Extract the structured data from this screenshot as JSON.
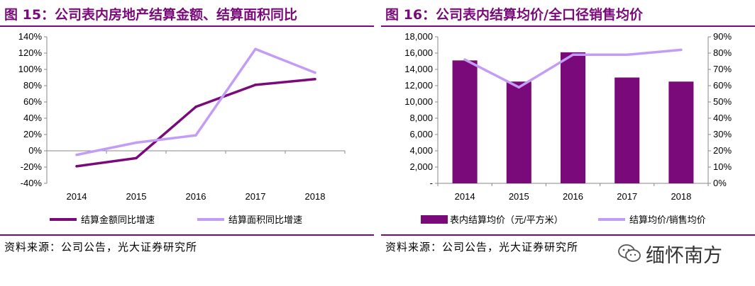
{
  "left": {
    "title": "图 15：公司表内房地产结算金额、结算面积同比",
    "source": "资料来源：公司公告，光大证券研究所"
  },
  "right": {
    "title": "图 16：公司表内结算均价/全口径销售均价",
    "source": "资料来源：公司公告，光大证券研究所"
  },
  "watermark": {
    "text": "缅怀南方",
    "icon": "wechat-icon"
  },
  "colors": {
    "dark": "#7a0a7a",
    "light": "#c39df5",
    "rule": "#7a0a7a"
  },
  "chart_data": [
    {
      "type": "line",
      "title": "图 15：公司表内房地产结算金额、结算面积同比",
      "categories": [
        "2014",
        "2015",
        "2016",
        "2017",
        "2018"
      ],
      "ylim": [
        -40,
        140
      ],
      "yticks": [
        "-40%",
        "-20%",
        "0%",
        "20%",
        "40%",
        "60%",
        "80%",
        "100%",
        "120%",
        "140%"
      ],
      "series": [
        {
          "name": "结算金额同比增速",
          "values": [
            -19,
            -9,
            54,
            81,
            88
          ],
          "color": "#7a0a7a"
        },
        {
          "name": "结算面积同比增速",
          "values": [
            -5,
            10,
            19,
            125,
            96
          ],
          "color": "#c39df5"
        }
      ],
      "grid": false,
      "legend": "bottom"
    },
    {
      "type": "bar",
      "title": "图 16：公司表内结算均价/全口径销售均价",
      "categories": [
        "2014",
        "2015",
        "2016",
        "2017",
        "2018"
      ],
      "ylim": [
        0,
        18000
      ],
      "yticks": [
        "-",
        "2,000",
        "4,000",
        "6,000",
        "8,000",
        "10,000",
        "12,000",
        "14,000",
        "16,000",
        "18,000"
      ],
      "y2lim": [
        0,
        90
      ],
      "y2ticks": [
        "0%",
        "10%",
        "20%",
        "30%",
        "40%",
        "50%",
        "60%",
        "70%",
        "80%",
        "90%"
      ],
      "series": [
        {
          "name": "表内结算均价（元/平方米）",
          "type": "bar",
          "axis": "left",
          "values": [
            15100,
            12500,
            16100,
            13000,
            12500
          ],
          "color": "#7a0a7a"
        },
        {
          "name": "结算均价/销售均价",
          "type": "line",
          "axis": "right",
          "values": [
            76,
            59,
            79,
            79,
            82
          ],
          "color": "#c39df5"
        }
      ],
      "grid": false,
      "legend": "bottom"
    }
  ]
}
